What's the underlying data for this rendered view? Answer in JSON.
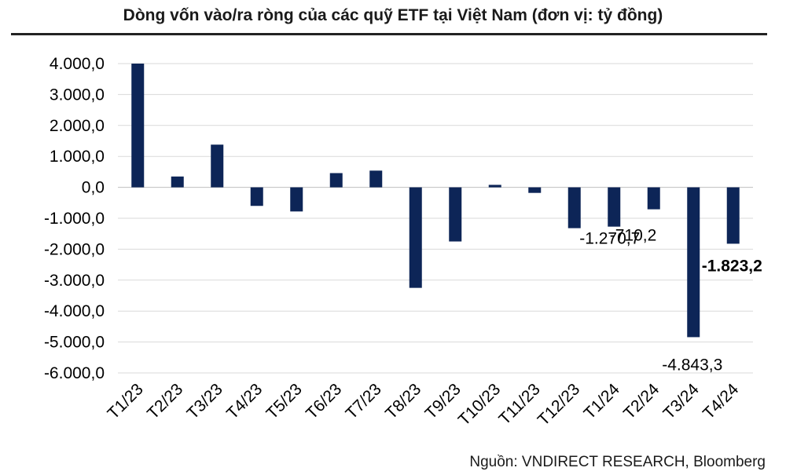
{
  "chart_data": {
    "type": "bar",
    "title": "Dòng vốn vào/ra ròng của các quỹ ETF tại Việt Nam (đơn vị: tỷ đồng)",
    "xlabel": "",
    "ylabel": "",
    "categories": [
      "T1/23",
      "T2/23",
      "T3/23",
      "T4/23",
      "T5/23",
      "T6/23",
      "T7/23",
      "T8/23",
      "T9/23",
      "T10/23",
      "T11/23",
      "T12/23",
      "T1/24",
      "T2/24",
      "T3/24",
      "T4/24"
    ],
    "values": [
      4000,
      350,
      1380,
      -600,
      -780,
      460,
      540,
      -3250,
      -1750,
      80,
      -180,
      -1320,
      -1270.7,
      -710.2,
      -4843.3,
      -1823.2
    ],
    "ylim": [
      -6000,
      4000
    ],
    "yticks": [
      4000,
      3000,
      2000,
      1000,
      0,
      -1000,
      -2000,
      -3000,
      -4000,
      -5000,
      -6000
    ],
    "ytick_labels": [
      "4.000,0",
      "3.000,0",
      "2.000,0",
      "1.000,0",
      "0,0",
      "-1.000,0",
      "-2.000,0",
      "-3.000,0",
      "-4.000,0",
      "-5.000,0",
      "-6.000,0"
    ],
    "data_labels": [
      {
        "category": "T1/24",
        "text": "-1.270,7",
        "bold": false
      },
      {
        "category": "T2/24",
        "text": "-710,2",
        "bold": false
      },
      {
        "category": "T3/24",
        "text": "-4.843,3",
        "bold": false
      },
      {
        "category": "T4/24",
        "text": "-1.823,2",
        "bold": true
      }
    ],
    "grid": true,
    "legend": "none",
    "colors": {
      "bar": "#0d2557",
      "grid": "#d9d9d9",
      "axis": "#bfbfbf"
    }
  },
  "source": "Nguồn: VNDIRECT RESEARCH, Bloomberg"
}
